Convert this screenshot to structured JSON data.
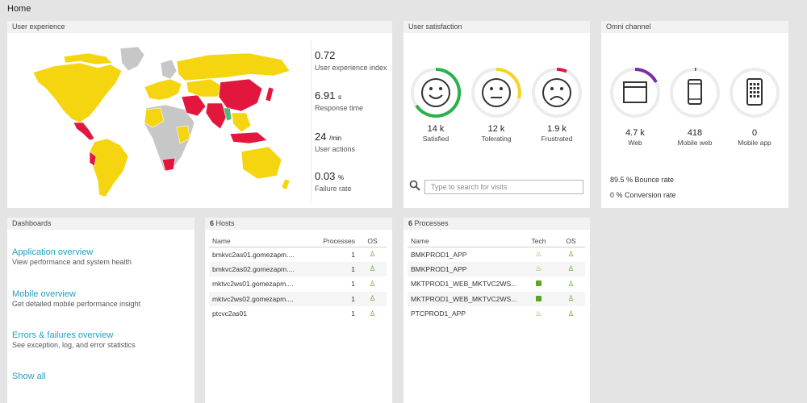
{
  "breadcrumb": "Home",
  "user_experience": {
    "title": "User experience",
    "metrics": [
      {
        "value": "0.72",
        "unit": "",
        "label": "User experience index"
      },
      {
        "value": "6.91",
        "unit": "s",
        "label": "Response time"
      },
      {
        "value": "24",
        "unit": "/min",
        "label": "User actions"
      },
      {
        "value": "0.03",
        "unit": "%",
        "label": "Failure rate"
      }
    ],
    "map_colors": {
      "good": "#f5d510",
      "bad": "#e3173e",
      "none": "#c7c7c7",
      "ok": "#4fb978"
    }
  },
  "user_satisfaction": {
    "title": "User satisfaction",
    "items": [
      {
        "value": "14 k",
        "label": "Satisfied",
        "color": "#2ab34a",
        "icon": "happy-face"
      },
      {
        "value": "12 k",
        "label": "Tolerating",
        "color": "#f3d51c",
        "icon": "neutral-face"
      },
      {
        "value": "1.9 k",
        "label": "Frustrated",
        "color": "#e3173e",
        "icon": "sad-face"
      }
    ],
    "search_placeholder": "Type to search for visits"
  },
  "omni_channel": {
    "title": "Omni channel",
    "items": [
      {
        "value": "4.7 k",
        "label": "Web",
        "icon": "browser-window"
      },
      {
        "value": "418",
        "label": "Mobile web",
        "icon": "smartphone"
      },
      {
        "value": "0",
        "label": "Mobile app",
        "icon": "smartphone-apps"
      }
    ],
    "accent": "#7b2fa0",
    "bounce_rate": "89.5 % Bounce rate",
    "conversion_rate": "0 % Conversion rate"
  },
  "dashboards": {
    "title": "Dashboards",
    "links": [
      {
        "title": "Application overview",
        "desc": "View performance and system health"
      },
      {
        "title": "Mobile overview",
        "desc": "Get detailed mobile performance insight"
      },
      {
        "title": "Errors & failures overview",
        "desc": "See exception, log, and error statistics"
      }
    ],
    "show_all": "Show all"
  },
  "hosts": {
    "count": "6",
    "title": "Hosts",
    "columns": [
      "Name",
      "Processes",
      "OS"
    ],
    "rows": [
      {
        "name": "bmkvc2as01.gomezapm....",
        "processes": "1",
        "os": "linux"
      },
      {
        "name": "bmkvc2as02.gomezapm....",
        "processes": "1",
        "os": "linux"
      },
      {
        "name": "mktvc2ws01.gomezapm....",
        "processes": "1",
        "os": "linux"
      },
      {
        "name": "mktvc2ws02.gomezapm....",
        "processes": "1",
        "os": "linux"
      },
      {
        "name": "ptcvc2as01",
        "processes": "1",
        "os": "linux"
      }
    ]
  },
  "processes": {
    "count": "6",
    "title": "Processes",
    "columns": [
      "Name",
      "Tech",
      "OS"
    ],
    "rows": [
      {
        "name": "BMKPROD1_APP",
        "tech": "java",
        "os": "linux"
      },
      {
        "name": "BMKPROD1_APP",
        "tech": "java",
        "os": "linux"
      },
      {
        "name": "MKTPROD1_WEB_MKTVC2WS...",
        "tech": "apache",
        "os": "linux"
      },
      {
        "name": "MKTPROD1_WEB_MKTVC2WS...",
        "tech": "apache",
        "os": "linux"
      },
      {
        "name": "PTCPROD1_APP",
        "tech": "java",
        "os": "linux"
      }
    ]
  }
}
